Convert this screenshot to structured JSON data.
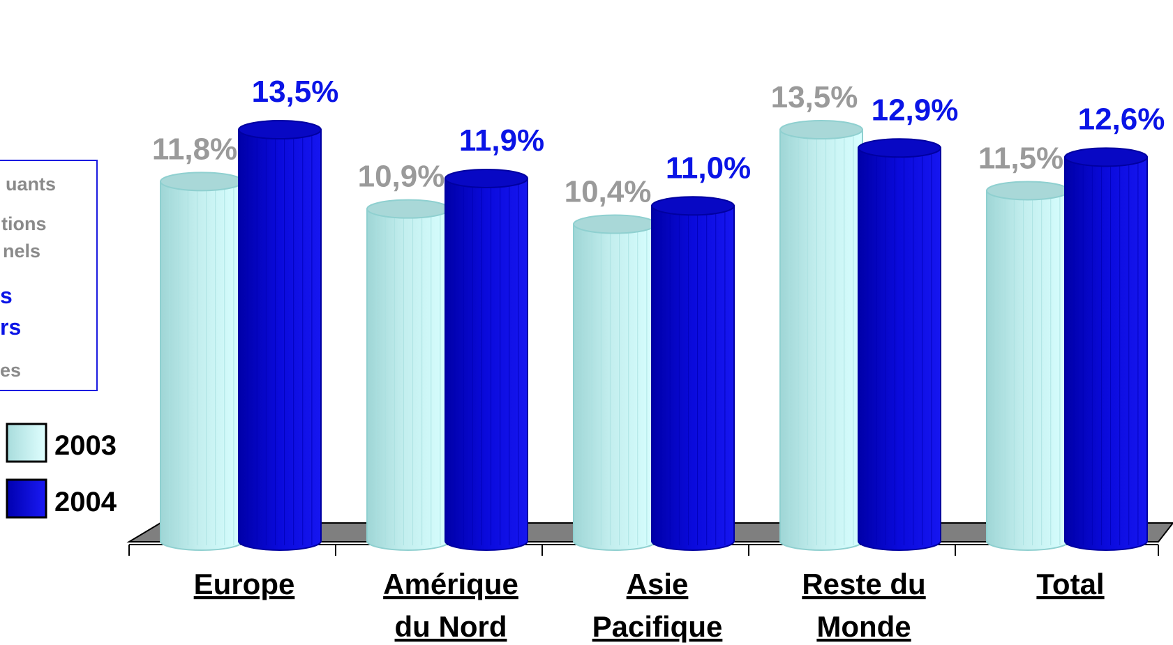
{
  "chart_data": {
    "type": "bar",
    "title": "",
    "xlabel": "",
    "ylabel": "",
    "ylim": [
      0,
      14
    ],
    "categories": [
      [
        "Europe"
      ],
      [
        "Amérique",
        "du Nord"
      ],
      [
        "Asie",
        "Pacifique"
      ],
      [
        "Reste du",
        "Monde"
      ],
      [
        "Total"
      ]
    ],
    "series": [
      {
        "name": "2003",
        "values": [
          11.8,
          10.9,
          10.4,
          13.5,
          11.5
        ],
        "labels": [
          "11,8%",
          "10,9%",
          "10,4%",
          "13,5%",
          "11,5%"
        ],
        "color": "#c8f4f4"
      },
      {
        "name": "2004",
        "values": [
          13.5,
          11.9,
          11.0,
          12.9,
          12.6
        ],
        "labels": [
          "13,5%",
          "11,9%",
          "11,0%",
          "12,9%",
          "12,6%"
        ],
        "color": "#0a0ad8"
      }
    ],
    "legend_position": "left",
    "grid": false
  },
  "overlay_box": {
    "fragments": [
      {
        "text": "uants",
        "tone": "grey"
      },
      {
        "text": "tions",
        "tone": "grey"
      },
      {
        "text": "nels",
        "tone": "grey"
      },
      {
        "text": "s",
        "tone": "blue"
      },
      {
        "text": "rs",
        "tone": "blue"
      },
      {
        "text": "es",
        "tone": "grey"
      }
    ]
  }
}
